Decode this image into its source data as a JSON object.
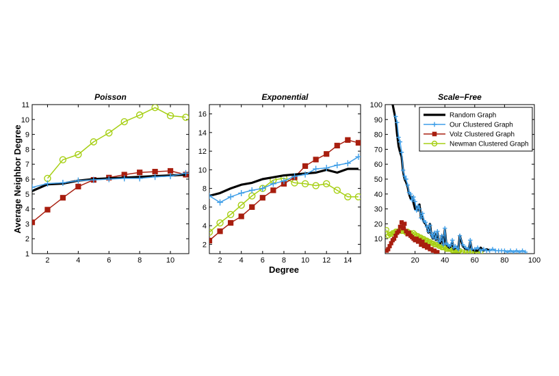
{
  "figure": {
    "ylabel": "Average Neighbor Degree",
    "xlabel": "Degree"
  },
  "colors": {
    "random": "#000000",
    "ours": "#3e9ee8",
    "volz": "#a81e0f",
    "newman": "#a6cf13"
  },
  "chart_data": [
    {
      "type": "line",
      "title": "Poisson",
      "xlabel": "",
      "ylabel": "Average Neighbor Degree",
      "xlim": [
        1,
        11.2
      ],
      "ylim": [
        1,
        11
      ],
      "xticks": [
        2,
        4,
        6,
        8,
        10
      ],
      "yticks": [
        1,
        2,
        3,
        4,
        5,
        6,
        7,
        8,
        9,
        10,
        11
      ],
      "x": [
        1,
        2,
        3,
        4,
        5,
        6,
        7,
        8,
        9,
        10,
        11
      ],
      "series": [
        {
          "name": "Random Graph",
          "key": "random",
          "values": [
            5.2,
            5.65,
            5.7,
            5.9,
            6.0,
            6.05,
            6.1,
            6.15,
            6.2,
            6.25,
            6.3
          ]
        },
        {
          "name": "Our Clustered Graph",
          "key": "ours",
          "values": [
            5.45,
            5.7,
            5.75,
            5.9,
            5.95,
            6.0,
            6.05,
            6.05,
            6.15,
            6.2,
            6.4
          ]
        },
        {
          "name": "Volz Clustered Graph",
          "key": "volz",
          "values": [
            3.1,
            3.95,
            4.75,
            5.5,
            5.95,
            6.1,
            6.3,
            6.45,
            6.5,
            6.55,
            6.3
          ]
        },
        {
          "name": "Newman Clustered Graph",
          "key": "newman",
          "values": [
            null,
            6.05,
            7.3,
            7.65,
            8.5,
            9.1,
            9.85,
            10.3,
            10.8,
            10.25,
            10.15
          ]
        }
      ]
    },
    {
      "type": "line",
      "title": "Exponential",
      "xlabel": "Degree",
      "ylabel": "",
      "xlim": [
        1,
        15.2
      ],
      "ylim": [
        1,
        17
      ],
      "xticks": [
        2,
        4,
        6,
        8,
        10,
        12,
        14
      ],
      "yticks": [
        2,
        4,
        6,
        8,
        10,
        12,
        14,
        16
      ],
      "x": [
        1,
        2,
        3,
        4,
        5,
        6,
        7,
        8,
        9,
        10,
        11,
        12,
        13,
        14,
        15
      ],
      "series": [
        {
          "name": "Random Graph",
          "key": "random",
          "values": [
            7.2,
            7.5,
            8.0,
            8.4,
            8.6,
            9.0,
            9.2,
            9.4,
            9.5,
            9.6,
            9.7,
            10.0,
            9.7,
            10.1,
            10.1
          ]
        },
        {
          "name": "Our Clustered Graph",
          "key": "ours",
          "values": [
            7.2,
            6.5,
            7.1,
            7.5,
            7.8,
            8.0,
            8.5,
            8.8,
            9.3,
            9.5,
            10.1,
            10.2,
            10.5,
            10.7,
            11.4
          ]
        },
        {
          "name": "Volz Clustered Graph",
          "key": "volz",
          "values": [
            2.4,
            3.4,
            4.3,
            5.0,
            6.0,
            7.0,
            7.8,
            8.5,
            9.2,
            10.4,
            11.1,
            11.7,
            12.6,
            13.2,
            12.9
          ]
        },
        {
          "name": "Newman Clustered Graph",
          "key": "newman",
          "values": [
            3.3,
            4.3,
            5.2,
            6.2,
            7.2,
            8.0,
            8.9,
            9.1,
            8.6,
            8.5,
            8.3,
            8.5,
            7.8,
            7.1,
            7.1
          ]
        }
      ]
    },
    {
      "type": "line",
      "title": "Scale−Free",
      "xlabel": "",
      "ylabel": "",
      "xlim": [
        0,
        100
      ],
      "ylim": [
        0,
        100
      ],
      "xticks": [
        20,
        40,
        60,
        80,
        100
      ],
      "yticks": [
        10,
        20,
        30,
        40,
        50,
        60,
        70,
        80,
        90,
        100
      ],
      "legend": {
        "position": "top-right",
        "entries": [
          "Random Graph",
          "Our Clustered Graph",
          "Volz Clustered Graph",
          "Newman Clustered Graph"
        ]
      },
      "series": [
        {
          "name": "Random Graph",
          "key": "random",
          "x": [
            5,
            7,
            8,
            9,
            10,
            11,
            12,
            13,
            14,
            15,
            16,
            17,
            18,
            19,
            20,
            21,
            22,
            23,
            24,
            25,
            26,
            27,
            28,
            29,
            30,
            31,
            32,
            33,
            34,
            35,
            36,
            37,
            38,
            39,
            40,
            41,
            42,
            43,
            44,
            45,
            46,
            47,
            48,
            49,
            50,
            52,
            54,
            56,
            57,
            58,
            60,
            62,
            64,
            66,
            68,
            70
          ],
          "y": [
            100,
            90,
            80,
            72,
            68,
            65,
            55,
            50,
            48,
            45,
            40,
            37,
            38,
            34,
            30,
            31,
            29,
            33,
            24,
            25,
            21,
            20,
            18,
            14,
            20,
            12,
            10,
            14,
            9,
            14,
            8,
            7,
            12,
            6,
            16,
            6,
            5,
            4,
            5,
            8,
            3,
            4,
            4,
            3,
            12,
            5,
            3,
            3,
            8,
            3,
            2,
            2,
            4,
            2,
            3,
            2
          ]
        },
        {
          "name": "Our Clustered Graph",
          "key": "ours",
          "x": [
            7,
            8,
            9,
            10,
            11,
            12,
            13,
            14,
            15,
            16,
            17,
            18,
            19,
            20,
            21,
            22,
            23,
            24,
            25,
            26,
            27,
            28,
            29,
            30,
            31,
            32,
            33,
            34,
            35,
            36,
            37,
            38,
            39,
            40,
            41,
            42,
            43,
            44,
            45,
            46,
            47,
            48,
            49,
            50,
            52,
            54,
            56,
            57,
            58,
            60,
            62,
            64,
            66,
            68,
            70,
            72,
            74,
            76,
            78,
            80,
            82,
            84,
            86,
            88,
            90,
            92,
            94
          ],
          "y": [
            92,
            88,
            78,
            75,
            68,
            56,
            52,
            50,
            46,
            41,
            40,
            36,
            38,
            35,
            29,
            32,
            30,
            24,
            27,
            22,
            21,
            18,
            15,
            19,
            13,
            11,
            14,
            10,
            15,
            8,
            9,
            12,
            6,
            17,
            7,
            6,
            5,
            6,
            9,
            4,
            5,
            4,
            3,
            12,
            6,
            4,
            3,
            9,
            3,
            3,
            4,
            2,
            3,
            2,
            2,
            3,
            2,
            2,
            2,
            2,
            1,
            2,
            1,
            2,
            1,
            2,
            1
          ]
        },
        {
          "name": "Volz Clustered Graph",
          "key": "volz",
          "x": [
            1,
            2,
            3,
            4,
            5,
            6,
            7,
            8,
            9,
            10,
            11,
            12,
            13,
            14,
            15,
            16,
            17,
            18,
            19,
            20,
            21,
            22,
            23,
            24,
            25,
            26,
            27,
            28,
            29,
            30,
            31,
            32,
            33,
            34,
            35
          ],
          "y": [
            2,
            3,
            5,
            7,
            9,
            10,
            12,
            14,
            15,
            18,
            21,
            17,
            20,
            15,
            13,
            14,
            12,
            11,
            10,
            9,
            10,
            8,
            9,
            6,
            8,
            5,
            6,
            4,
            5,
            3,
            3,
            2,
            2,
            1,
            1
          ]
        },
        {
          "name": "Newman Clustered Graph",
          "key": "newman",
          "x": [
            1,
            2,
            3,
            4,
            5,
            6,
            7,
            8,
            9,
            10,
            11,
            12,
            13,
            14,
            15,
            16,
            17,
            18,
            19,
            20,
            21,
            22,
            23,
            24,
            25,
            26,
            27,
            28,
            29,
            30,
            31,
            32,
            33,
            34,
            35,
            36,
            37,
            38,
            39,
            40,
            41,
            42,
            43,
            44,
            45,
            46,
            47,
            48,
            49,
            50,
            52,
            54,
            56,
            58,
            60,
            62,
            64
          ],
          "y": [
            16,
            12,
            13,
            13,
            14,
            14,
            15,
            15,
            15,
            16,
            15,
            15,
            15,
            14,
            15,
            14,
            14,
            13,
            14,
            13,
            12,
            12,
            11,
            11,
            10,
            10,
            9,
            9,
            8,
            8,
            7,
            7,
            6,
            6,
            6,
            5,
            5,
            4,
            4,
            4,
            3,
            3,
            3,
            3,
            2,
            2,
            2,
            2,
            2,
            2,
            1,
            1,
            1,
            1,
            1,
            1,
            1
          ]
        }
      ]
    }
  ]
}
